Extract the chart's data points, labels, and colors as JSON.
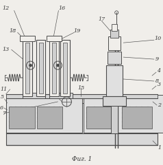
{
  "title": "Фиг. 1",
  "bg_color": "#f0eeea",
  "line_color": "#4a4a4a",
  "lw_main": 0.8,
  "lw_thin": 0.5,
  "grid_color": "#888888",
  "label_fs": 5.8,
  "label_color": "#333333"
}
